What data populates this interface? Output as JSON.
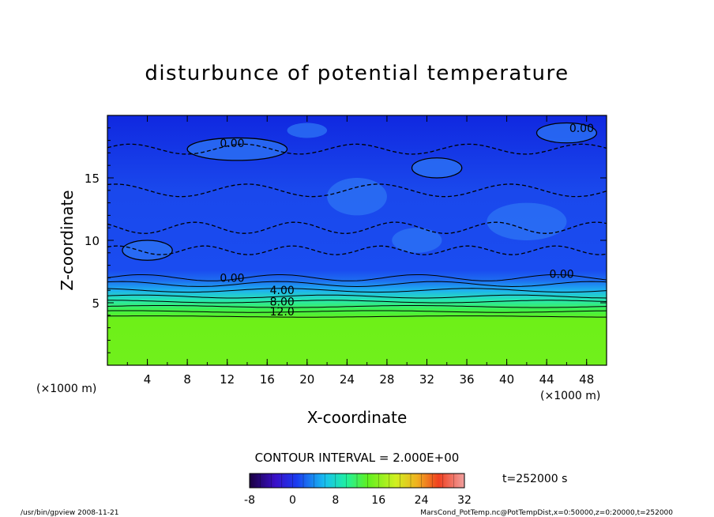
{
  "chart_data": {
    "type": "heatmap",
    "title": "disturbunce of potential temperature",
    "xlabel": "X-coordinate",
    "ylabel": "Z-coordinate",
    "x_unit": "(×1000 m)",
    "y_unit": "(×1000 m)",
    "xlim": [
      0,
      50
    ],
    "ylim": [
      0,
      20
    ],
    "x_ticks": [
      4,
      8,
      12,
      16,
      20,
      24,
      28,
      32,
      36,
      40,
      44,
      48
    ],
    "y_ticks": [
      5,
      10,
      15
    ],
    "contour_labels": [
      {
        "text": "0.00",
        "x": 12.5,
        "z": 17.8
      },
      {
        "text": "0.00",
        "x": 47.5,
        "z": 19.0
      },
      {
        "text": "0.00",
        "x": 12.5,
        "z": 7.0
      },
      {
        "text": "0.00",
        "x": 45.5,
        "z": 7.3
      },
      {
        "text": "4.00",
        "x": 17.5,
        "z": 6.0
      },
      {
        "text": "8.00",
        "x": 17.5,
        "z": 5.1
      },
      {
        "text": "12.0",
        "x": 17.5,
        "z": 4.3
      }
    ],
    "contour_interval_text": "CONTOUR INTERVAL = 2.000E+00",
    "time_text": "t=252000 s",
    "colorbar": {
      "min": -8,
      "max": 32,
      "ticks": [
        "-8",
        "0",
        "8",
        "16",
        "24",
        "32"
      ]
    },
    "colors": {
      "upper_field": "#1436e6",
      "mid_field": "#1ea6f0",
      "lower_field": "#6ef018",
      "contour": "#000000"
    }
  },
  "footer": {
    "left": "/usr/bin/gpview  2008-11-21",
    "right": "MarsCond_PotTemp.nc@PotTempDist,x=0:50000,z=0:20000,t=252000"
  }
}
